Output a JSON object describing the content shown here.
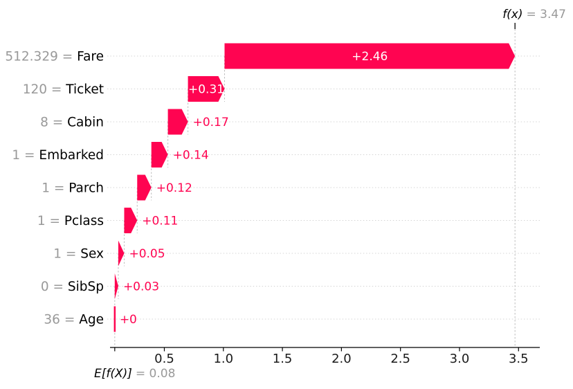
{
  "figure": {
    "background": "#ffffff",
    "fx_annotation": {
      "label": "f(x)",
      "value_text": "= 3.47"
    },
    "base_annotation": {
      "label": "E[f(X)]",
      "value_text": "= 0.08"
    }
  },
  "chart_data": {
    "type": "bar",
    "subtype": "shap-waterfall",
    "title": "",
    "xlabel": "",
    "ylabel": "",
    "base_value": 0.08,
    "base_label": "E[f(X)]",
    "final_value": 3.47,
    "final_label": "f(x)",
    "xlim": [
      0.04,
      3.68
    ],
    "grid": "dotted-horizontal-per-row",
    "legend": "none",
    "rows": [
      {
        "feature": "Fare",
        "feature_value": "512.329",
        "shap": 2.46,
        "label": "+2.46"
      },
      {
        "feature": "Ticket",
        "feature_value": "120",
        "shap": 0.31,
        "label": "+0.31"
      },
      {
        "feature": "Cabin",
        "feature_value": "8",
        "shap": 0.17,
        "label": "+0.17"
      },
      {
        "feature": "Embarked",
        "feature_value": "1",
        "shap": 0.14,
        "label": "+0.14"
      },
      {
        "feature": "Parch",
        "feature_value": "1",
        "shap": 0.12,
        "label": "+0.12"
      },
      {
        "feature": "Pclass",
        "feature_value": "1",
        "shap": 0.11,
        "label": "+0.11"
      },
      {
        "feature": "Sex",
        "feature_value": "1",
        "shap": 0.05,
        "label": "+0.05"
      },
      {
        "feature": "SibSp",
        "feature_value": "0",
        "shap": 0.03,
        "label": "+0.03"
      },
      {
        "feature": "Age",
        "feature_value": "36",
        "shap": 0.0,
        "label": "+0"
      }
    ],
    "x_ticks": [
      {
        "value": 0.5,
        "label": "0.5"
      },
      {
        "value": 1.0,
        "label": "1.0"
      },
      {
        "value": 1.5,
        "label": "1.5"
      },
      {
        "value": 2.0,
        "label": "2.0"
      },
      {
        "value": 2.5,
        "label": "2.5"
      },
      {
        "value": 3.0,
        "label": "3.0"
      },
      {
        "value": 3.5,
        "label": "3.5"
      }
    ],
    "colors": {
      "positive_bar": "#ff0451",
      "value_text_outside": "#ff0451",
      "value_text_inside": "#ffffff",
      "feature_value_text": "#999999",
      "feature_name_text": "#000000",
      "axis_line": "#000000",
      "axis_text": "#1a1a1a",
      "gridline": "#d4d4d4",
      "connector": "#bcbcbc"
    }
  }
}
